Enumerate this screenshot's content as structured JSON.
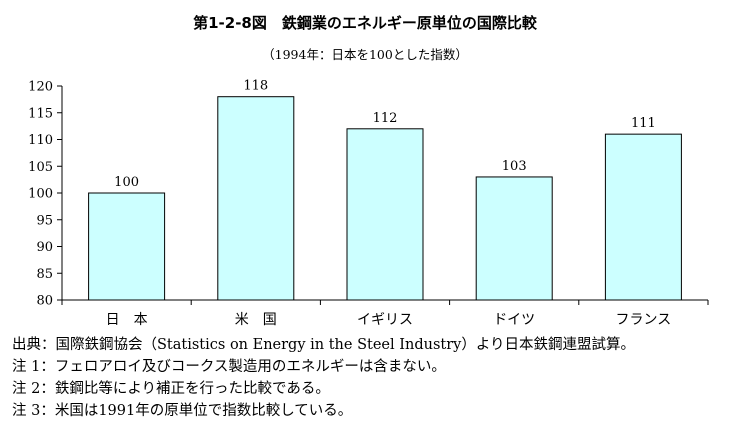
{
  "chart_data": {
    "type": "bar",
    "title": "第1-2-8図　鉄鋼業のエネルギー原単位の国際比較",
    "subtitle": "（1994年：日本を100とした指数）",
    "categories": [
      "日　本",
      "米　国",
      "イギリス",
      "ドイツ",
      "フランス"
    ],
    "values": [
      100,
      118,
      112,
      103,
      111
    ],
    "ylim": [
      80,
      120
    ],
    "yticks": [
      80,
      85,
      90,
      95,
      100,
      105,
      110,
      115,
      120
    ],
    "xlabel": "",
    "ylabel": "",
    "grid": false,
    "legend": "none",
    "bar_color": "#ccffff",
    "bar_border": "#000000"
  },
  "notes": [
    "出典：国際鉄鋼協会（Statistics on Energy in the Steel Industry）より日本鉄鋼連盟試算。",
    "注 1：フェロアロイ及びコークス製造用のエネルギーは含まない。",
    "注 2：鉄鋼比等により補正を行った比較である。",
    "注 3：米国は1991年の原単位で指数比較している。"
  ]
}
